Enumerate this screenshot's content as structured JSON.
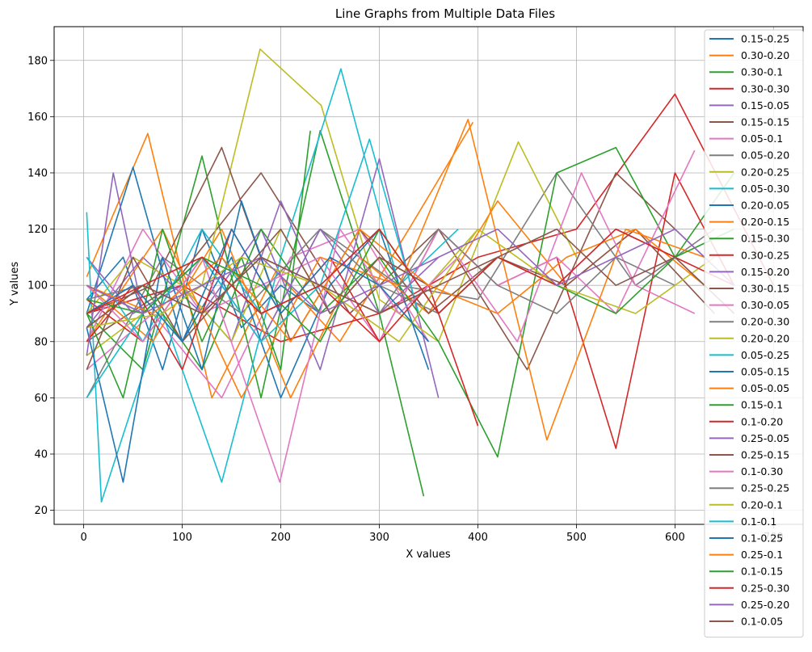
{
  "chart_data": {
    "type": "line",
    "title": "Line Graphs from Multiple Data Files",
    "xlabel": "X values",
    "ylabel": "Y values",
    "xlim": [
      -30,
      730
    ],
    "ylim": [
      15,
      192
    ],
    "xticks": [
      0,
      100,
      200,
      300,
      400,
      500,
      600,
      700
    ],
    "yticks": [
      20,
      40,
      60,
      80,
      100,
      120,
      140,
      160,
      180
    ],
    "grid": true,
    "legend_position": "right",
    "palette": [
      "#1f77b4",
      "#ff7f0e",
      "#2ca02c",
      "#d62728",
      "#9467bd",
      "#8c564b",
      "#e377c2",
      "#7f7f7f",
      "#bcbd22",
      "#17becf"
    ],
    "series": [
      {
        "name": "0.15-0.25",
        "x": [
          3,
          40,
          80,
          120,
          160,
          200,
          240
        ],
        "y": [
          95,
          110,
          70,
          120,
          85,
          100,
          90
        ]
      },
      {
        "name": "0.30-0.20",
        "x": [
          3,
          65,
          130,
          195,
          260,
          330,
          395
        ],
        "y": [
          103,
          154,
          60,
          105,
          80,
          120,
          158
        ]
      },
      {
        "name": "0.30-0.1",
        "x": [
          3,
          60,
          120,
          180,
          240,
          300,
          345
        ],
        "y": [
          90,
          70,
          146,
          60,
          155,
          90,
          25
        ]
      },
      {
        "name": "0.30-0.30",
        "x": [
          3,
          100,
          200,
          300,
          400,
          500,
          600,
          700
        ],
        "y": [
          90,
          100,
          80,
          90,
          110,
          120,
          168,
          100
        ]
      },
      {
        "name": "0.15-0.05",
        "x": [
          3,
          60,
          120,
          180,
          240,
          300,
          360
        ],
        "y": [
          85,
          110,
          90,
          120,
          70,
          145,
          60
        ]
      },
      {
        "name": "0.15-0.15",
        "x": [
          3,
          90,
          180,
          270,
          360,
          450,
          540,
          630
        ],
        "y": [
          80,
          100,
          140,
          90,
          120,
          70,
          140,
          110
        ]
      },
      {
        "name": "0.05-0.1",
        "x": [
          3,
          70,
          140,
          210,
          280,
          350
        ],
        "y": [
          70,
          90,
          60,
          110,
          120,
          80
        ]
      },
      {
        "name": "0.05-0.20",
        "x": [
          3,
          80,
          160,
          240,
          320,
          400,
          480,
          560,
          640
        ],
        "y": [
          60,
          110,
          90,
          120,
          100,
          95,
          140,
          100,
          120
        ]
      },
      {
        "name": "0.20-0.25",
        "x": [
          3,
          60,
          120,
          179,
          241,
          300,
          360,
          441,
          500
        ],
        "y": [
          75,
          90,
          100,
          184,
          164,
          95,
          80,
          151,
          110
        ]
      },
      {
        "name": "0.05-0.30",
        "x": [
          3,
          18,
          80,
          140,
          200,
          261,
          320,
          380
        ],
        "y": [
          126,
          23,
          90,
          30,
          110,
          177,
          100,
          120
        ]
      },
      {
        "name": "0.20-0.05",
        "x": [
          3,
          50,
          100,
          150,
          200,
          250,
          300,
          350
        ],
        "y": [
          90,
          142,
          80,
          110,
          60,
          100,
          120,
          70
        ]
      },
      {
        "name": "0.20-0.15",
        "x": [
          3,
          70,
          140,
          210,
          280,
          350,
          420,
          490,
          560
        ],
        "y": [
          100,
          80,
          120,
          60,
          110,
          90,
          130,
          100,
          120
        ]
      },
      {
        "name": "0.15-0.30",
        "x": [
          3,
          60,
          120,
          180,
          240,
          300,
          360,
          420,
          480,
          540,
          600,
          660
        ],
        "y": [
          85,
          100,
          70,
          120,
          90,
          110,
          80,
          39,
          140,
          149,
          110,
          140
        ]
      },
      {
        "name": "0.30-0.25",
        "x": [
          3,
          60,
          120,
          180,
          240,
          300,
          360,
          420,
          480,
          540,
          600,
          660
        ],
        "y": [
          95,
          80,
          110,
          90,
          100,
          80,
          120,
          100,
          110,
          42,
          140,
          100
        ]
      },
      {
        "name": "0.15-0.20",
        "x": [
          3,
          50,
          100,
          150,
          200,
          250,
          300,
          350
        ],
        "y": [
          110,
          90,
          100,
          80,
          130,
          90,
          110,
          100
        ]
      },
      {
        "name": "0.30-0.15",
        "x": [
          3,
          70,
          140,
          210,
          280,
          350,
          420,
          490,
          560,
          640
        ],
        "y": [
          90,
          100,
          149,
          80,
          120,
          90,
          110,
          100,
          120,
          90
        ]
      },
      {
        "name": "0.30-0.05",
        "x": [
          3,
          60,
          120,
          180,
          240,
          300,
          360,
          420,
          480,
          540,
          620
        ],
        "y": [
          80,
          120,
          90,
          100,
          110,
          80,
          120,
          100,
          110,
          90,
          148
        ]
      },
      {
        "name": "0.20-0.30",
        "x": [
          3,
          60,
          120,
          180,
          240,
          300,
          360,
          420,
          480,
          540,
          600,
          660
        ],
        "y": [
          100,
          90,
          110,
          80,
          120,
          100,
          90,
          110,
          100,
          120,
          110,
          90
        ]
      },
      {
        "name": "0.20-0.20",
        "x": [
          3,
          50,
          100,
          150,
          200,
          250,
          300,
          350,
          400
        ],
        "y": [
          90,
          110,
          100,
          80,
          120,
          90,
          110,
          100,
          120
        ]
      },
      {
        "name": "0.05-0.25",
        "x": [
          3,
          60,
          120,
          180,
          240,
          290,
          340
        ],
        "y": [
          110,
          80,
          120,
          90,
          100,
          152,
          90
        ]
      },
      {
        "name": "0.05-0.15",
        "x": [
          3,
          40,
          80,
          120,
          160,
          200
        ],
        "y": [
          85,
          30,
          110,
          70,
          130,
          90
        ]
      },
      {
        "name": "0.05-0.05",
        "x": [
          3,
          80,
          160,
          240,
          320,
          390,
          470,
          550,
          630
        ],
        "y": [
          80,
          120,
          60,
          110,
          100,
          159,
          45,
          120,
          110
        ]
      },
      {
        "name": "0.15-0.1",
        "x": [
          3,
          40,
          80,
          120,
          160,
          200,
          230
        ],
        "y": [
          90,
          60,
          120,
          80,
          110,
          70,
          155
        ]
      },
      {
        "name": "0.1-0.20",
        "x": [
          3,
          50,
          100,
          150,
          200,
          250,
          300,
          350,
          400
        ],
        "y": [
          80,
          100,
          70,
          120,
          90,
          110,
          80,
          100,
          50
        ]
      },
      {
        "name": "0.25-0.05",
        "x": [
          3,
          30,
          60,
          120,
          180,
          240,
          300,
          360
        ],
        "y": [
          75,
          140,
          90,
          110,
          80,
          120,
          90,
          110
        ]
      },
      {
        "name": "0.25-0.15",
        "x": [
          3,
          50,
          100,
          150,
          200,
          250,
          300,
          350
        ],
        "y": [
          70,
          110,
          80,
          100,
          120,
          90,
          110,
          100
        ]
      },
      {
        "name": "0.1-0.30",
        "x": [
          3,
          60,
          120,
          199,
          260,
          320,
          380,
          440,
          505,
          560,
          620
        ],
        "y": [
          100,
          80,
          110,
          30,
          120,
          90,
          110,
          80,
          140,
          100,
          90
        ]
      },
      {
        "name": "0.25-0.25",
        "x": [
          3,
          60,
          120,
          180,
          240,
          300,
          360,
          420,
          480,
          540,
          600
        ],
        "y": [
          95,
          100,
          90,
          110,
          100,
          90,
          120,
          100,
          90,
          110,
          100
        ]
      },
      {
        "name": "0.20-0.1",
        "x": [
          3,
          80,
          160,
          240,
          320,
          400,
          480,
          560,
          640
        ],
        "y": [
          85,
          90,
          110,
          100,
          80,
          120,
          100,
          90,
          110
        ]
      },
      {
        "name": "0.1-0.1",
        "x": [
          3,
          60,
          120,
          180,
          240,
          300,
          360
        ],
        "y": [
          60,
          90,
          110,
          80,
          100,
          120,
          90
        ]
      },
      {
        "name": "0.1-0.25",
        "x": [
          3,
          50,
          100,
          150,
          200,
          250,
          300,
          350
        ],
        "y": [
          90,
          100,
          80,
          120,
          90,
          110,
          100,
          80
        ]
      },
      {
        "name": "0.25-0.1",
        "x": [
          3,
          70,
          140,
          210,
          280,
          350,
          420,
          490,
          560,
          630
        ],
        "y": [
          100,
          90,
          110,
          80,
          120,
          100,
          90,
          110,
          120,
          100
        ]
      },
      {
        "name": "0.1-0.15",
        "x": [
          3,
          60,
          120,
          180,
          240,
          300,
          360,
          420,
          480,
          540,
          600,
          660
        ],
        "y": [
          95,
          90,
          110,
          100,
          80,
          120,
          90,
          110,
          100,
          90,
          110,
          120
        ]
      },
      {
        "name": "0.25-0.30",
        "x": [
          3,
          60,
          120,
          180,
          240,
          300,
          360,
          420,
          480,
          540,
          600,
          660
        ],
        "y": [
          90,
          100,
          110,
          90,
          100,
          120,
          90,
          110,
          100,
          120,
          110,
          100
        ]
      },
      {
        "name": "0.25-0.20",
        "x": [
          3,
          60,
          120,
          180,
          240,
          300,
          360,
          420,
          480,
          540,
          600,
          660
        ],
        "y": [
          100,
          90,
          100,
          110,
          90,
          100,
          110,
          120,
          100,
          110,
          120,
          100
        ]
      },
      {
        "name": "0.1-0.05",
        "x": [
          3,
          60,
          120,
          180,
          240,
          300,
          360,
          420,
          480,
          540,
          600,
          660
        ],
        "y": [
          85,
          100,
          90,
          110,
          100,
          90,
          100,
          110,
          120,
          100,
          110,
          90
        ]
      }
    ]
  }
}
